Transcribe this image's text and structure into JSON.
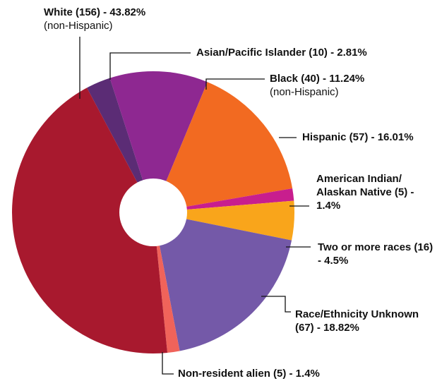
{
  "chart_data": {
    "type": "pie",
    "title": "",
    "slices": [
      {
        "label": "Asian/Pacific Islander (10) - 2.81%",
        "sublabel": "",
        "count": 10,
        "percent": 2.81,
        "color": "#5b2c75"
      },
      {
        "label": "Black (40) - 11.24%",
        "sublabel": "(non-Hispanic)",
        "count": 40,
        "percent": 11.24,
        "color": "#8e2891"
      },
      {
        "label": "Hispanic (57) - 16.01%",
        "sublabel": "",
        "count": 57,
        "percent": 16.01,
        "color": "#f26a21"
      },
      {
        "label": "American Indian/ Alaskan Native (5) - 1.4%",
        "sublabel": "",
        "count": 5,
        "percent": 1.4,
        "color": "#c81e8e"
      },
      {
        "label": "Two or more races (16) - 4.5%",
        "sublabel": "",
        "count": 16,
        "percent": 4.5,
        "color": "#f9a51b"
      },
      {
        "label": "Race/Ethnicity Unknown (67) - 18.82%",
        "sublabel": "",
        "count": 67,
        "percent": 18.82,
        "color": "#7459a8"
      },
      {
        "label": "Non-resident alien (5) - 1.4%",
        "sublabel": "",
        "count": 5,
        "percent": 1.4,
        "color": "#f0635a"
      },
      {
        "label": "White (156) - 43.82%",
        "sublabel": "(non-Hispanic)",
        "count": 156,
        "percent": 43.82,
        "color": "#a8192e"
      }
    ]
  }
}
